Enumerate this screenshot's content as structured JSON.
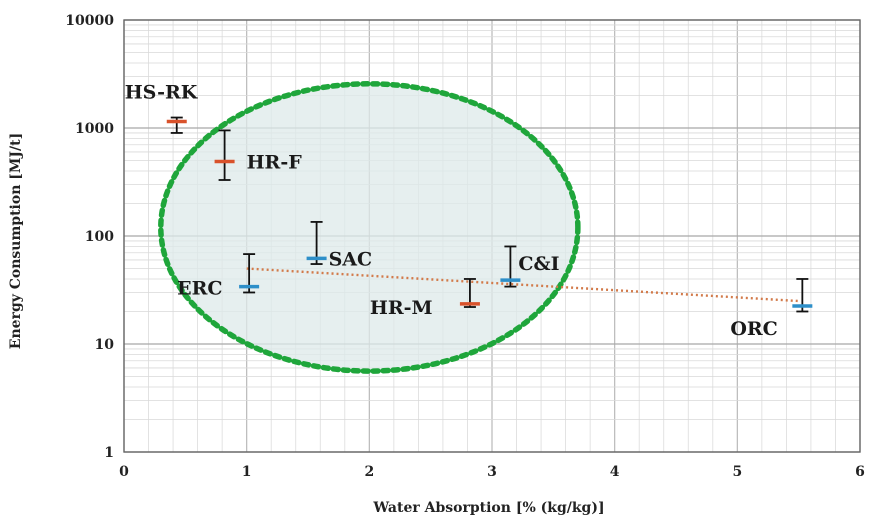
{
  "chart_data": {
    "type": "scatter",
    "title": "",
    "xlabel": "Water Absorption [% (kg/kg)]",
    "ylabel": "Energy Consumption [MJ/t]",
    "xlim": [
      0,
      6
    ],
    "ylim": [
      1,
      10000
    ],
    "y_scale": "log",
    "grid": true,
    "legend": "none",
    "x_ticks": [
      "0",
      "1",
      "2",
      "3",
      "4",
      "5",
      "6"
    ],
    "y_ticks": [
      "1",
      "10",
      "100",
      "1000",
      "10000"
    ],
    "points": [
      {
        "label": "HS-RK",
        "x": 0.43,
        "y": 1150,
        "low": 900,
        "high": 1250,
        "color": "#d9522b"
      },
      {
        "label": "HR-F",
        "x": 0.82,
        "y": 490,
        "low": 330,
        "high": 950,
        "color": "#d9522b"
      },
      {
        "label": "ERC",
        "x": 1.02,
        "y": 34,
        "low": 30,
        "high": 68,
        "color": "#2e8fc9"
      },
      {
        "label": "SAC",
        "x": 1.57,
        "y": 62,
        "low": 55,
        "high": 135,
        "color": "#2e8fc9"
      },
      {
        "label": "HR-M",
        "x": 2.82,
        "y": 23.5,
        "low": 22,
        "high": 40,
        "color": "#d9522b"
      },
      {
        "label": "C&I",
        "x": 3.15,
        "y": 39,
        "low": 34,
        "high": 80,
        "color": "#2e8fc9"
      },
      {
        "label": "ORC",
        "x": 5.53,
        "y": 22.5,
        "low": 20,
        "high": 40,
        "color": "#2e8fc9"
      }
    ],
    "trendline": {
      "x": [
        1.0,
        5.5
      ],
      "y": [
        50,
        25
      ],
      "color": "#d27a4a",
      "style": "dotted"
    },
    "highlight_ellipse": {
      "cx": 2.0,
      "cy": 120,
      "rx": 1.7,
      "ry_decades": 1.33,
      "stroke": "#1fa63b",
      "fill": "#dde9e9"
    }
  }
}
